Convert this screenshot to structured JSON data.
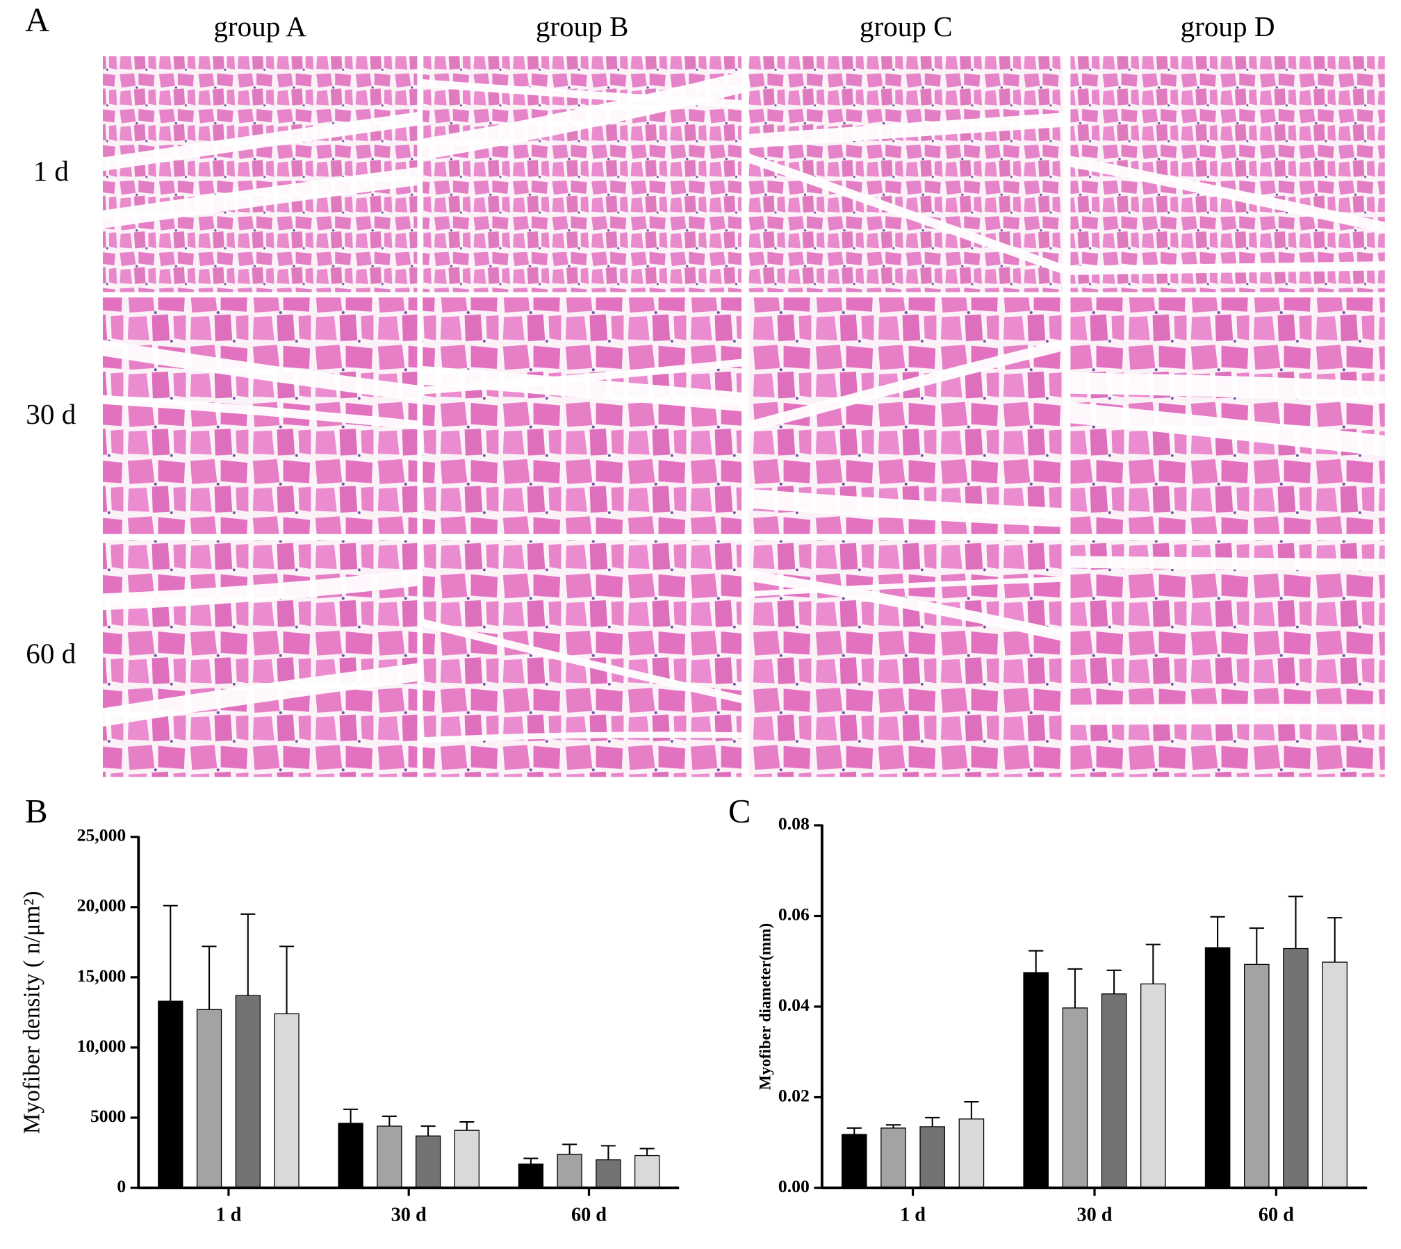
{
  "panel_a": {
    "label": "A",
    "columns": [
      "group A",
      "group B",
      "group C",
      "group D"
    ],
    "rows": [
      "1 d",
      "30 d",
      "60 d"
    ]
  },
  "chart_data": [
    {
      "type": "bar",
      "panel_label": "B",
      "y_label": "Myofiber density ( n/μm²)",
      "categories": [
        "1 d",
        "30 d",
        "60 d"
      ],
      "series": [
        {
          "color": "#000000",
          "values": [
            13300,
            4600,
            1700
          ],
          "errors": [
            6800,
            1000,
            400
          ]
        },
        {
          "color": "#a3a3a3",
          "values": [
            12700,
            4400,
            2400
          ],
          "errors": [
            4500,
            700,
            700
          ]
        },
        {
          "color": "#737373",
          "values": [
            13700,
            3700,
            2000
          ],
          "errors": [
            5800,
            700,
            1000
          ]
        },
        {
          "color": "#d9d9d9",
          "values": [
            12400,
            4100,
            2300
          ],
          "errors": [
            4800,
            600,
            500
          ]
        }
      ],
      "ylim": [
        0,
        25000
      ],
      "yticks": [
        0,
        5000,
        {
          "value": 10000,
          "label": "10,000"
        },
        {
          "value": 15000,
          "label": "15,000"
        },
        {
          "value": 20000,
          "label": "20,000"
        },
        {
          "value": 25000,
          "label": "25,000"
        }
      ]
    },
    {
      "type": "bar",
      "panel_label": "C",
      "y_label": "Myofiber diameter(mm)",
      "categories": [
        "1 d",
        "30 d",
        "60 d"
      ],
      "series": [
        {
          "color": "#000000",
          "values": [
            0.0118,
            0.0475,
            0.053
          ],
          "errors": [
            0.0014,
            0.0048,
            0.0068
          ]
        },
        {
          "color": "#a3a3a3",
          "values": [
            0.0132,
            0.0397,
            0.0493
          ],
          "errors": [
            0.0007,
            0.0086,
            0.008
          ]
        },
        {
          "color": "#737373",
          "values": [
            0.0135,
            0.0428,
            0.0528
          ],
          "errors": [
            0.002,
            0.0052,
            0.0115
          ]
        },
        {
          "color": "#d9d9d9",
          "values": [
            0.0152,
            0.045,
            0.0498
          ],
          "errors": [
            0.0038,
            0.0087,
            0.0098
          ]
        }
      ],
      "ylim": [
        0,
        0.08
      ],
      "yticks": [
        {
          "value": 0,
          "label": "0.00"
        },
        0.02,
        0.04,
        0.06,
        0.08
      ]
    }
  ]
}
